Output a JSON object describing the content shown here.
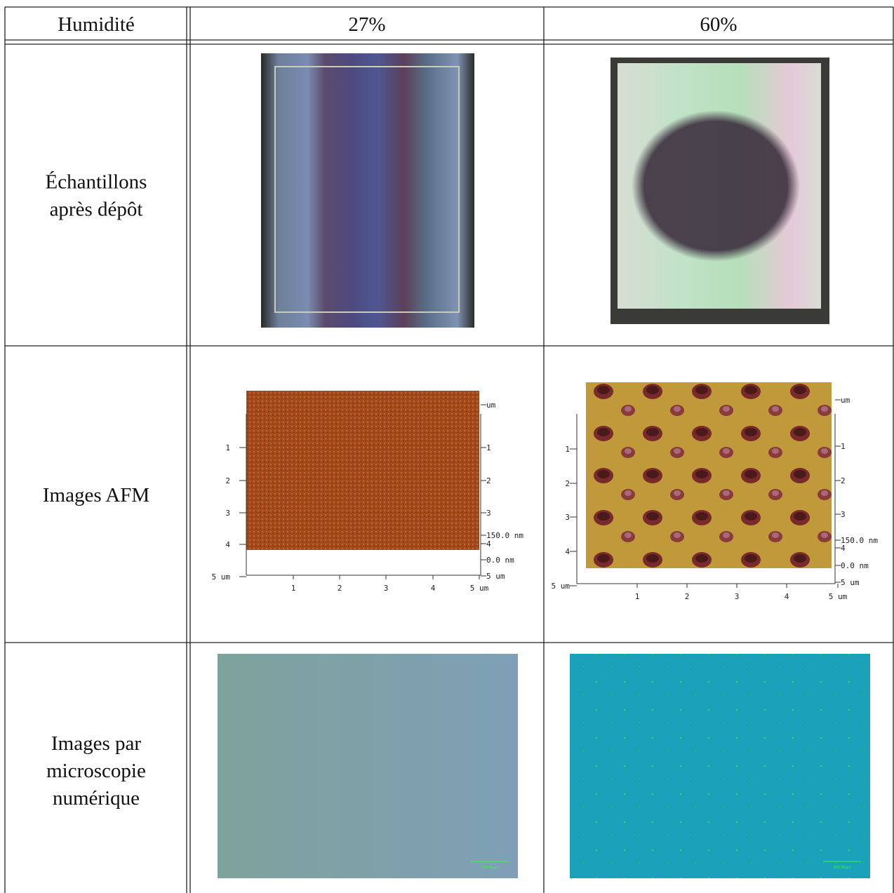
{
  "table": {
    "header": [
      "Humidité",
      "27%",
      "60%"
    ],
    "rows": [
      {
        "label": [
          "Échantillons",
          "après dépôt"
        ]
      },
      {
        "label": [
          "Images AFM"
        ],
        "afm": [
          {
            "left": [
              "1",
              "2",
              "3",
              "4",
              "5 um"
            ],
            "right": [
              "um",
              "1",
              "2",
              "3",
              "150.0 nm",
              "4",
              "0.0 nm",
              "5 um"
            ],
            "bottom": [
              "1",
              "2",
              "3",
              "4",
              "5 um"
            ]
          },
          {
            "left": [
              "1",
              "2",
              "3",
              "4",
              "5 um"
            ],
            "right": [
              "um",
              "1",
              "2",
              "3",
              "150.0 nm",
              "4",
              "0.0 nm",
              "5 um"
            ],
            "bottom": [
              "1",
              "2",
              "3",
              "4",
              "5 um"
            ]
          }
        ]
      },
      {
        "label": [
          "Images par",
          "microscopie",
          "numérique"
        ],
        "scale_bars": [
          "100.00µm",
          "100.00µm"
        ]
      }
    ]
  }
}
